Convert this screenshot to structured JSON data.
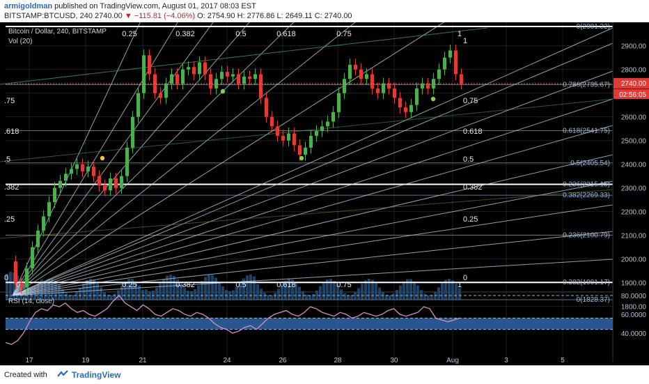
{
  "header": {
    "author": "armigoldman",
    "published_text": "published on TradingView.com, August 01, 2017 08:03 EST",
    "symbol": "BITSTAMP:BTCUSD, 240",
    "last": "2740.00",
    "change": "−115.81 (−4.06%)",
    "open": "O: 2754.90",
    "high": "H: 2776.86",
    "low": "L: 2649.11",
    "close": "C: 2740.00"
  },
  "main_pane": {
    "legend_title": "Bitcoin / Dollar, 240, BITSTAMP",
    "volume_label": "Vol (20)",
    "price_label": "2740.00",
    "countdown_label": "02:56:05",
    "price_axis": [
      "2900.00",
      "2800.00",
      "2700.00",
      "2600.00",
      "2500.00",
      "2400.00",
      "2300.00",
      "2200.00",
      "2100.00",
      "2000.00",
      "1900.00",
      "1800.00"
    ],
    "fib_levels": [
      {
        "label": "0(2981.32)",
        "price": 2981.32
      },
      {
        "label": "0.786(2735.67)",
        "price": 2735.67
      },
      {
        "label": "0.618(2541.75)",
        "price": 2541.75
      },
      {
        "label": "0.5(2405.54)",
        "price": 2405.54
      },
      {
        "label": "0.236(2315.15)",
        "price": 2315.15
      },
      {
        "label": "0.382(2269.33)",
        "price": 2269.33
      },
      {
        "label": "0.236(2100.79)",
        "price": 2100.79
      },
      {
        "label": "0.382(1901.17)",
        "price": 1901.17
      },
      {
        "label": "0(1828.37)",
        "price": 1828.37
      }
    ],
    "gann_top_labels": [
      "0.25",
      "0.382",
      "0.5",
      "0.618",
      "0.75",
      "1"
    ],
    "gann_bottom_labels": [
      "0",
      "0.25",
      "0.382",
      "0.5",
      "0.618",
      "0.75",
      "1"
    ],
    "gann_right_labels": [
      "1",
      "0.75",
      "0.618",
      "0.5",
      "0.382",
      "0.25",
      "0"
    ],
    "gann_left_labels": [
      ".75",
      ".618",
      ".5",
      ".382",
      ".25",
      "0"
    ]
  },
  "rsi_pane": {
    "label": "RSI (14, close)",
    "axis": [
      "80.0000",
      "60.0000",
      "40.0000"
    ]
  },
  "time_axis": [
    "17",
    "19",
    "21",
    "24",
    "26",
    "28",
    "30",
    "Aug",
    "3",
    "5"
  ],
  "footer": {
    "created_with": "Created with",
    "brand": "TradingView"
  },
  "colors": {
    "up": "#4caf50",
    "down": "#e53935",
    "price_badge": "#e53935",
    "rsi_line": "#d58fc3",
    "rsi_band": "#2f5f9e",
    "volume": "#1f4f7a"
  }
}
